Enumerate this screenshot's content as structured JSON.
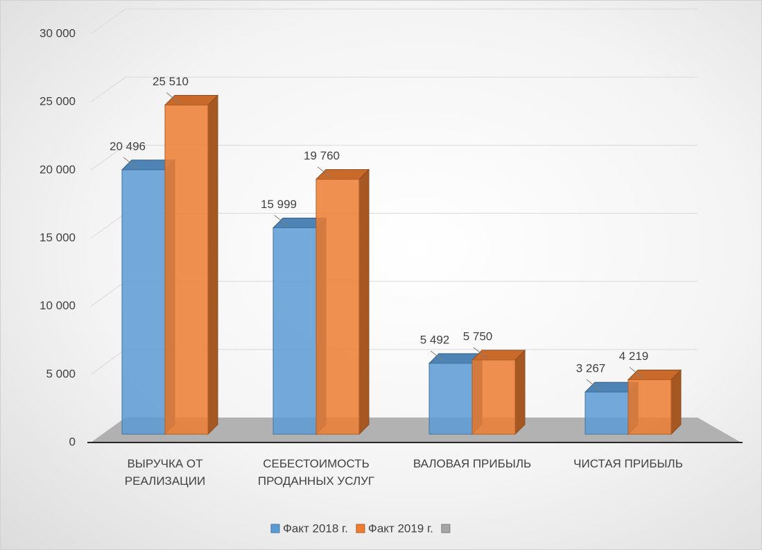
{
  "chart_data": {
    "type": "bar3d",
    "categories": [
      "ВЫРУЧКА ОТ\nРЕАЛИЗАЦИИ",
      "СЕБЕСТОИМОСТЬ\nПРОДАННЫХ УСЛУГ",
      "ВАЛОВАЯ ПРИБЫЛЬ",
      "ЧИСТАЯ ПРИБЫЛЬ"
    ],
    "series": [
      {
        "name": "Факт 2018 г.",
        "color": "#5b9bd5",
        "values": [
          20496,
          15999,
          5492,
          3267
        ],
        "value_labels": [
          "20 496",
          "15 999",
          "5 492",
          "3 267"
        ]
      },
      {
        "name": "Факт 2019 г.",
        "color": "#ed7d31",
        "values": [
          25510,
          19760,
          5750,
          4219
        ],
        "value_labels": [
          "25 510",
          "19 760",
          "5 750",
          "4 219"
        ]
      },
      {
        "color": "#a5a5a5",
        "values": [
          null,
          null,
          null,
          null
        ]
      }
    ],
    "ylim": [
      0,
      30000
    ],
    "yticks": [
      0,
      {
        "value": 5000,
        "label": "5 000"
      },
      {
        "value": 10000,
        "label": "10 000"
      },
      {
        "value": 15000,
        "label": "15 000"
      },
      {
        "value": 20000,
        "label": "20 000"
      },
      {
        "value": 25000,
        "label": "25 000"
      },
      {
        "value": 30000,
        "label": "30 000"
      }
    ],
    "grid": true
  }
}
